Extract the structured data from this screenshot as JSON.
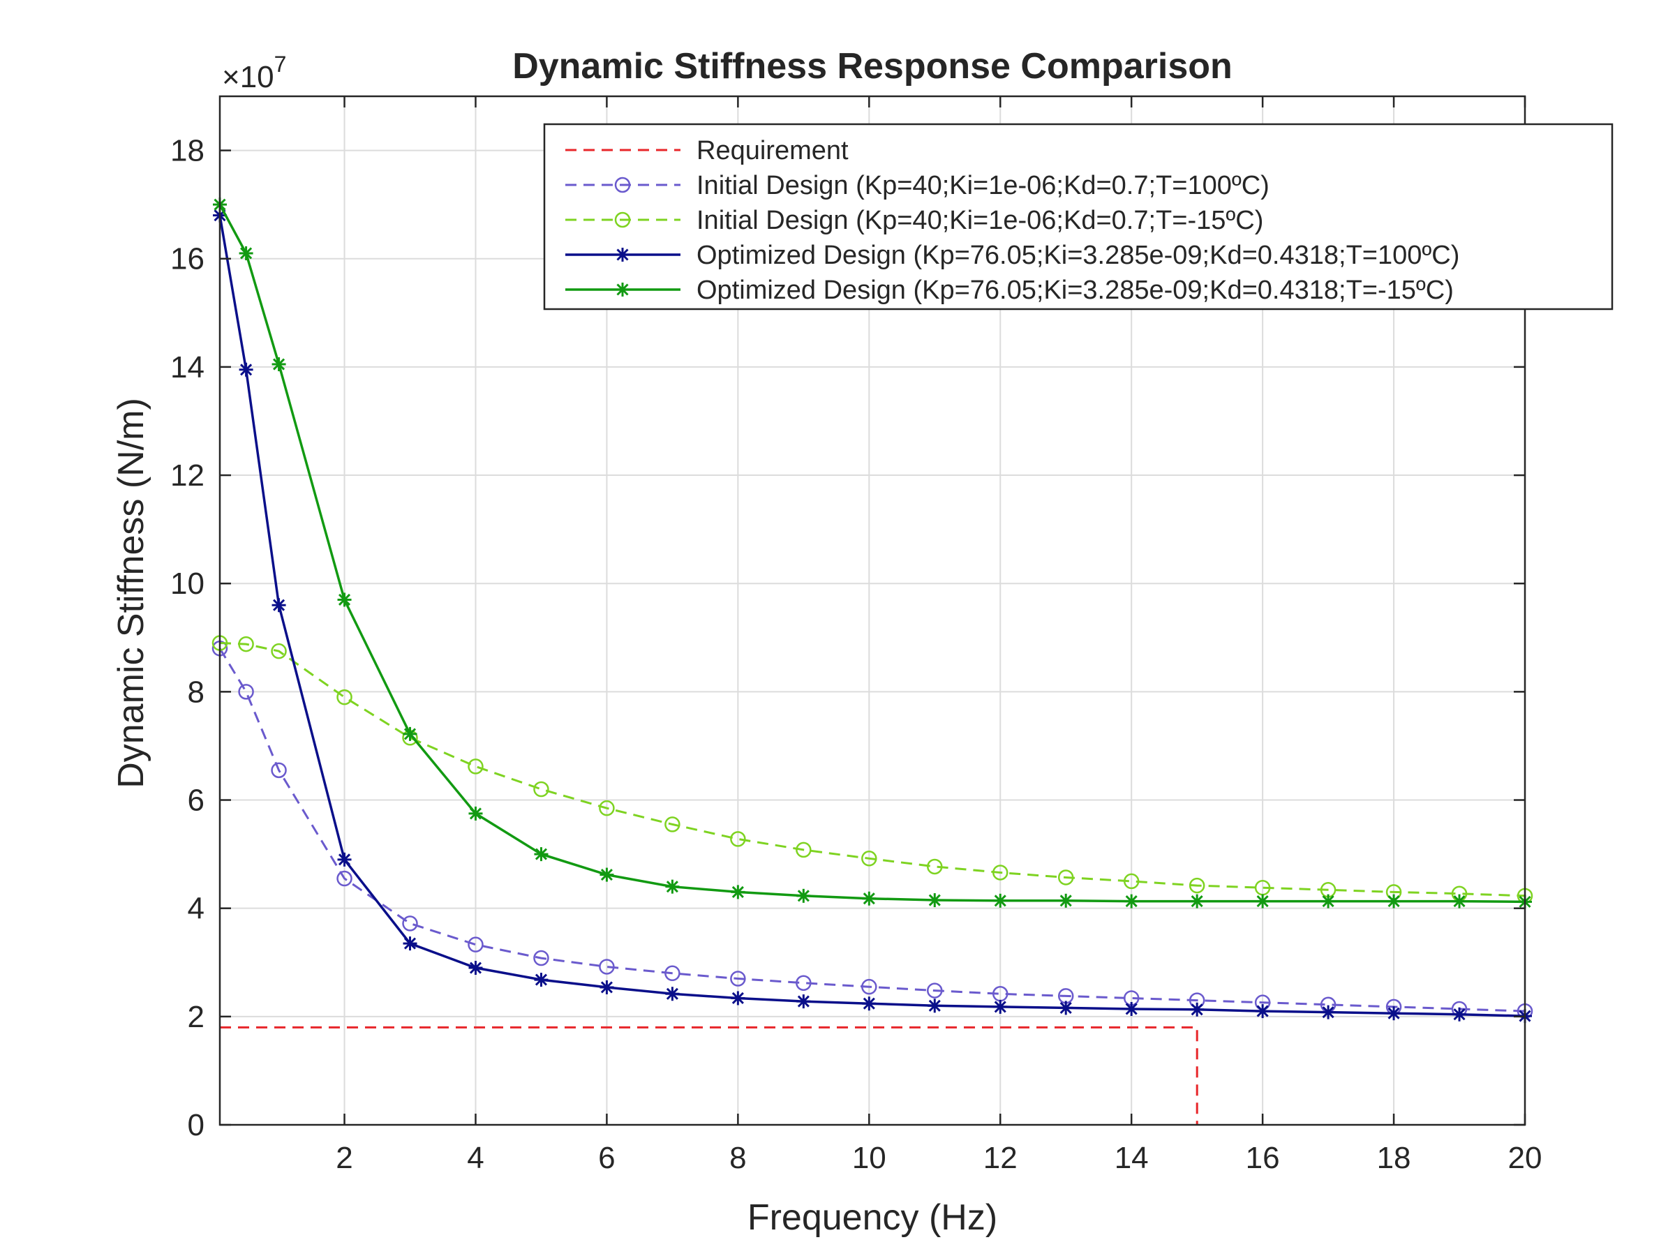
{
  "chart_data": {
    "type": "line",
    "title": "Dynamic Stiffness Response Comparison",
    "xlabel": "Frequency (Hz)",
    "ylabel": "Dynamic Stiffness (N/m)",
    "y_multiplier_label": "×10",
    "y_multiplier_exponent": "7",
    "xlim": [
      0.1,
      20
    ],
    "ylim": [
      0,
      19
    ],
    "y_scale_factor": 10000000,
    "xticks": [
      2,
      4,
      6,
      8,
      10,
      12,
      14,
      16,
      18,
      20
    ],
    "xtick_labels": [
      "2",
      "4",
      "6",
      "8",
      "10",
      "12",
      "14",
      "16",
      "18",
      "20"
    ],
    "yticks": [
      0,
      2,
      4,
      6,
      8,
      10,
      12,
      14,
      16,
      18
    ],
    "ytick_labels": [
      "0",
      "2",
      "4",
      "6",
      "8",
      "10",
      "12",
      "14",
      "16",
      "18"
    ],
    "grid": true,
    "legend_position": "top-right",
    "series": [
      {
        "name": "Requirement",
        "color": "#e8262a",
        "line_style": "dashed",
        "marker": "none",
        "x": [
          0.1,
          15,
          15
        ],
        "y": [
          1.8,
          1.8,
          0
        ]
      },
      {
        "name": "Initial Design (Kp=40;Ki=1e-06;Kd=0.7;T=100ºC)",
        "color": "#6a5acd",
        "line_style": "dashed",
        "marker": "circle",
        "x": [
          0.1,
          0.5,
          1,
          2,
          3,
          4,
          5,
          6,
          7,
          8,
          9,
          10,
          11,
          12,
          13,
          14,
          15,
          16,
          17,
          18,
          19,
          20
        ],
        "y": [
          8.8,
          8.0,
          6.55,
          4.55,
          3.72,
          3.33,
          3.08,
          2.92,
          2.8,
          2.7,
          2.62,
          2.55,
          2.48,
          2.42,
          2.38,
          2.34,
          2.3,
          2.26,
          2.22,
          2.18,
          2.14,
          2.1
        ]
      },
      {
        "name": "Initial Design (Kp=40;Ki=1e-06;Kd=0.7;T=-15ºC)",
        "color": "#7ed321",
        "line_style": "dashed",
        "marker": "circle",
        "x": [
          0.1,
          0.5,
          1,
          2,
          3,
          4,
          5,
          6,
          7,
          8,
          9,
          10,
          11,
          12,
          13,
          14,
          15,
          16,
          17,
          18,
          19,
          20
        ],
        "y": [
          8.9,
          8.88,
          8.75,
          7.9,
          7.15,
          6.62,
          6.2,
          5.85,
          5.55,
          5.28,
          5.08,
          4.92,
          4.77,
          4.66,
          4.57,
          4.5,
          4.42,
          4.38,
          4.34,
          4.3,
          4.27,
          4.23
        ]
      },
      {
        "name": "Optimized Design (Kp=76.05;Ki=3.285e-09;Kd=0.4318;T=100ºC)",
        "color": "#0a0f8a",
        "line_style": "solid",
        "marker": "asterisk",
        "x": [
          0.1,
          0.5,
          1,
          2,
          3,
          4,
          5,
          6,
          7,
          8,
          9,
          10,
          11,
          12,
          13,
          14,
          15,
          16,
          17,
          18,
          19,
          20
        ],
        "y": [
          16.8,
          13.95,
          9.6,
          4.9,
          3.35,
          2.9,
          2.68,
          2.54,
          2.42,
          2.34,
          2.28,
          2.24,
          2.2,
          2.18,
          2.16,
          2.14,
          2.13,
          2.1,
          2.08,
          2.06,
          2.04,
          2.01
        ]
      },
      {
        "name": "Optimized Design (Kp=76.05;Ki=3.285e-09;Kd=0.4318;T=-15ºC)",
        "color": "#129a12",
        "line_style": "solid",
        "marker": "asterisk",
        "x": [
          0.1,
          0.5,
          1,
          2,
          3,
          4,
          5,
          6,
          7,
          8,
          9,
          10,
          11,
          12,
          13,
          14,
          15,
          16,
          17,
          18,
          19,
          20
        ],
        "y": [
          17.0,
          16.1,
          14.05,
          9.7,
          7.22,
          5.75,
          5.0,
          4.62,
          4.4,
          4.3,
          4.23,
          4.18,
          4.15,
          4.14,
          4.14,
          4.13,
          4.13,
          4.13,
          4.13,
          4.13,
          4.13,
          4.12
        ]
      }
    ]
  }
}
